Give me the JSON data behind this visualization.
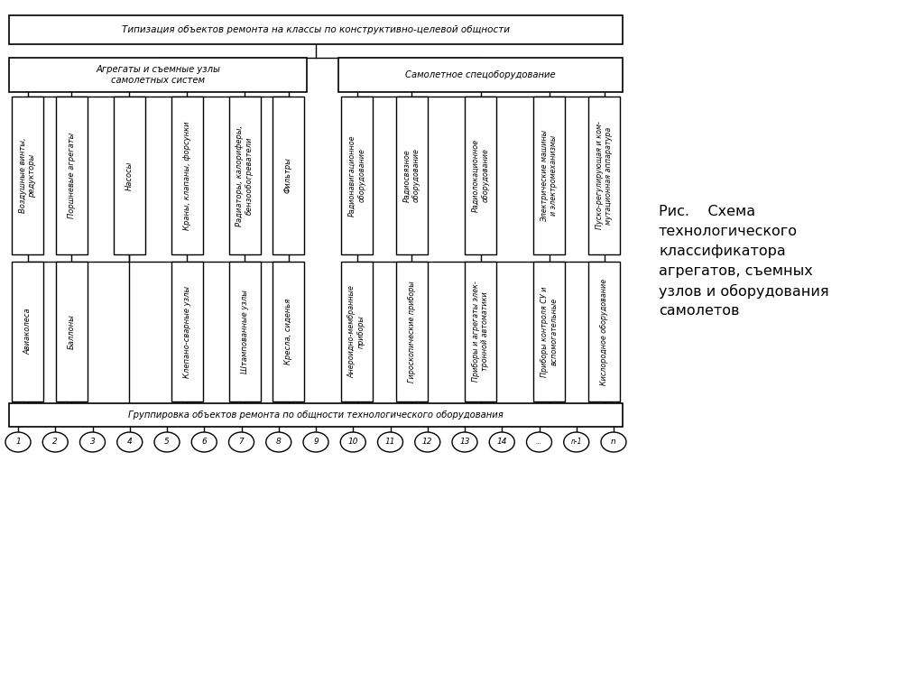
{
  "title_top": "Типизация объектов ремонта на классы по конструктивно-целевой общности",
  "title_bottom": "Группировка объектов ремонта по общности технологического оборудования",
  "group1_title": "Агрегаты и съемные узлы\nсамолетных систем",
  "group2_title": "Самолетное спецоборудование",
  "caption_line1": "Рис.    Схема",
  "caption_line2": "технологического",
  "caption_line3": "классификатора",
  "caption_line4": "агрегатов, съемных",
  "caption_line5": "узлов и оборудования",
  "caption_line6": "самолетов",
  "top_row_group1": [
    "Воздушные винты,\nредукторы",
    "Поршневые агрегаты",
    "Насосы",
    "Краны, клапаны, форсунки",
    "Радиаторы, калориферы,\nбензообогреватели",
    "Фильтры"
  ],
  "top_row_group2": [
    "Радионавигационное\nоборудование",
    "Радиосвязное\nоборудование",
    "Радиолокационное\nоборудование",
    "Электрические машины\nи электромеханизмы",
    "Пуско-регулирующая и ком-\nмутационная аппаратура"
  ],
  "bot_row_group1": [
    "Авиаколеса",
    "Баллоны",
    "Клепано-сварные узлы",
    "Штампованные узлы",
    "Кресла, сиденья"
  ],
  "bot_row_group2": [
    "Анероидно-мембранные\nприборы",
    "Гироскопические приборы",
    "Приборы и агрегаты элек-\nтронной автоматики",
    "Приборы контроля СУ и\nвспомогательные",
    "Кислородное оборудование"
  ],
  "bottom_labels": [
    "1",
    "2",
    "3",
    "4",
    "5",
    "6",
    "7",
    "8",
    "9",
    "10",
    "11",
    "12",
    "13",
    "14",
    "...",
    "n-1",
    "n"
  ],
  "bg_color": "#ffffff",
  "line_color": "#000000",
  "text_color": "#000000"
}
